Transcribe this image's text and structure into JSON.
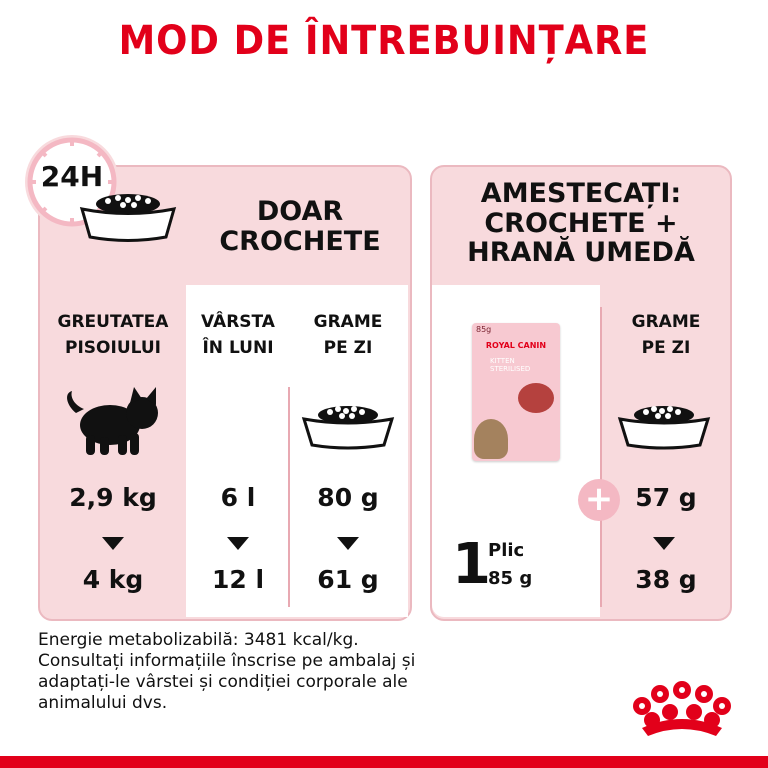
{
  "page_title": "MOD DE ÎNTREBUINȚARE",
  "left_panel": {
    "badge": "24H",
    "heading_line1": "DOAR",
    "heading_line2": "CROCHETE",
    "col1_line1": "GREUTATEA",
    "col1_line2": "PISOIULUI",
    "col2_line1": "VÂRSTA",
    "col2_line2": "ÎN LUNI",
    "col3_line1": "GRAME",
    "col3_line2": "PE ZI",
    "weight_from": "2,9 kg",
    "weight_to": "4 kg",
    "age_from": "6 l",
    "age_to": "12 l",
    "grams_from": "80 g",
    "grams_to": "61 g"
  },
  "right_panel": {
    "heading_line1": "AMESTECAȚI:",
    "heading_line2": "CROCHETE +",
    "heading_line3": "HRANĂ UMEDĂ",
    "pouch_weight": "85g",
    "pouch_brand": "ROYAL CANIN",
    "pouch_line1": "KITTEN",
    "pouch_line2": "STERILISED",
    "pouch_count": "1",
    "pouch_unit": "Plic",
    "pouch_grams": "85 g",
    "col_line1": "GRAME",
    "col_line2": "PE ZI",
    "plus_sign": "+",
    "grams_from": "57 g",
    "grams_to": "38 g"
  },
  "footer": {
    "line1": "Energie metabolizabilă: 3481 kcal/kg.",
    "line2": "Consultați informațiile înscrise pe ambalaj și",
    "line3": "adaptați-le vârstei și condiției corporale ale",
    "line4": "animalului dvs."
  },
  "colors": {
    "brand_red": "#e2001a",
    "panel_pink": "#f8dadd",
    "accent_pink": "#f4b8c3"
  },
  "icons": [
    "clock-24h-icon",
    "food-bowl-icon",
    "kitten-silhouette-icon",
    "down-arrow-icon",
    "plus-icon",
    "royal-canin-crown-logo"
  ]
}
